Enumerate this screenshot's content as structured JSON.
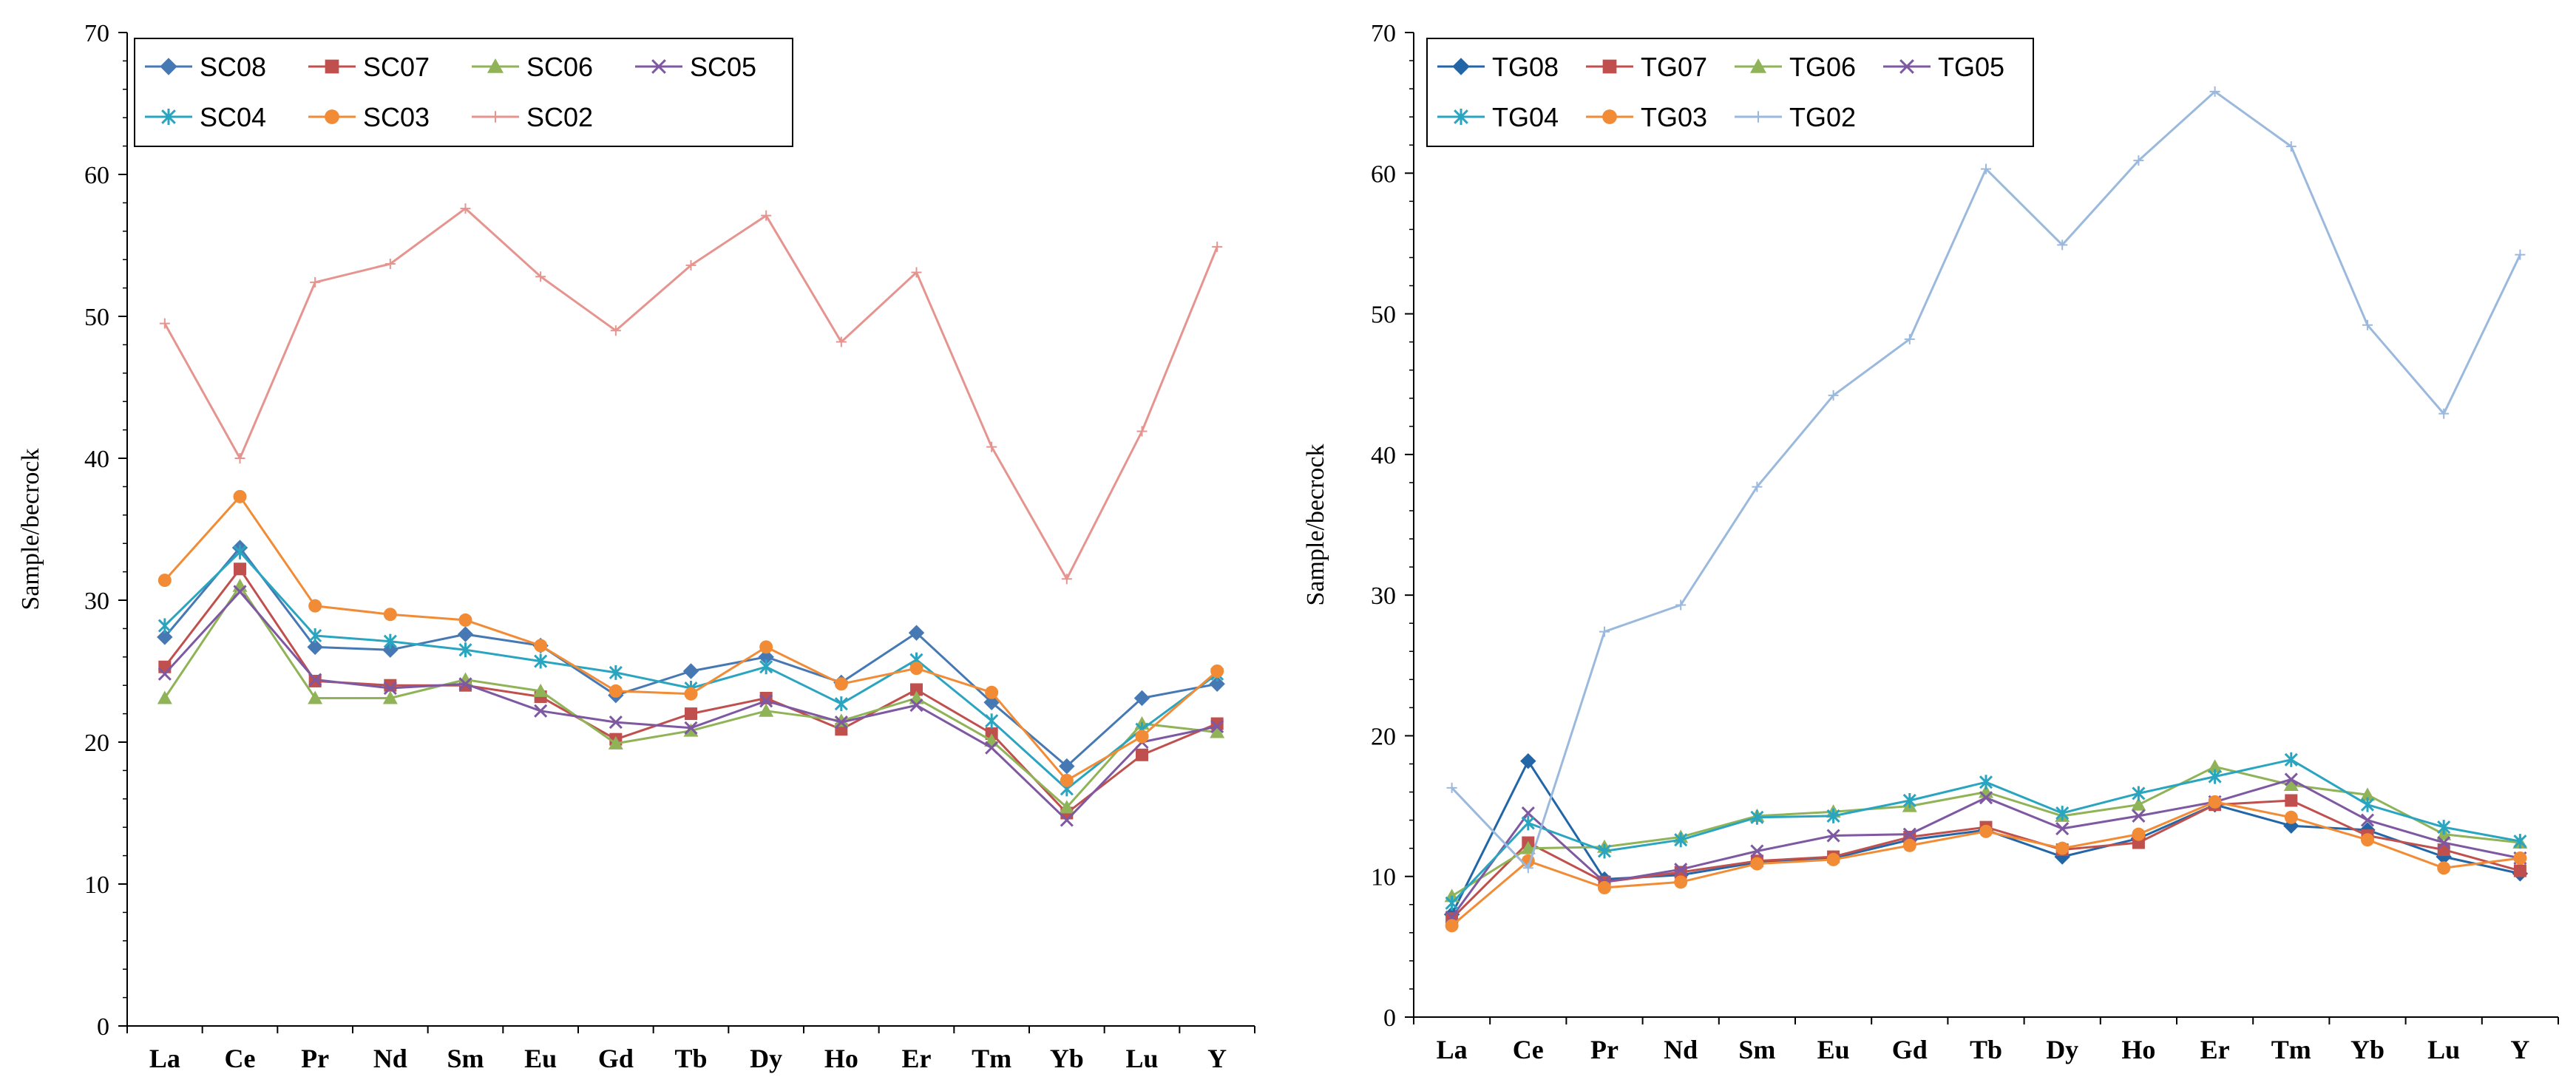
{
  "chart_data": [
    {
      "type": "line",
      "title": "",
      "xlabel": "",
      "ylabel": "Sample/becrock",
      "ylim": [
        0,
        70
      ],
      "yticks": [
        0,
        10,
        20,
        30,
        40,
        50,
        60,
        70
      ],
      "grid": false,
      "legend_position": "top-left",
      "categories": [
        "La",
        "Ce",
        "Pr",
        "Nd",
        "Sm",
        "Eu",
        "Gd",
        "Tb",
        "Dy",
        "Ho",
        "Er",
        "Tm",
        "Yb",
        "Lu",
        "Y"
      ],
      "series": [
        {
          "name": "SC08",
          "color": "#4679b4",
          "marker": "diamond",
          "values": [
            27.4,
            33.7,
            26.7,
            26.5,
            27.6,
            26.8,
            23.3,
            25.0,
            26.0,
            24.2,
            27.7,
            22.8,
            18.3,
            23.1,
            24.1
          ]
        },
        {
          "name": "SC07",
          "color": "#c0504d",
          "marker": "square",
          "values": [
            25.3,
            32.2,
            24.3,
            24.0,
            24.0,
            23.2,
            20.2,
            22.0,
            23.1,
            20.9,
            23.7,
            20.6,
            15.0,
            19.1,
            21.3
          ]
        },
        {
          "name": "SC06",
          "color": "#8fb356",
          "marker": "triangle",
          "values": [
            23.1,
            31.0,
            23.1,
            23.1,
            24.4,
            23.6,
            19.9,
            20.8,
            22.2,
            21.5,
            23.1,
            20.1,
            15.4,
            21.3,
            20.7
          ]
        },
        {
          "name": "SC05",
          "color": "#7e58a1",
          "marker": "x",
          "values": [
            24.8,
            30.6,
            24.4,
            23.8,
            24.1,
            22.2,
            21.4,
            21.0,
            22.9,
            21.4,
            22.6,
            19.6,
            14.5,
            20.0,
            21.1
          ]
        },
        {
          "name": "SC04",
          "color": "#2aa5c0",
          "marker": "star",
          "values": [
            28.2,
            33.4,
            27.5,
            27.1,
            26.5,
            25.7,
            24.9,
            23.8,
            25.3,
            22.7,
            25.8,
            21.5,
            16.7,
            20.9,
            24.8
          ]
        },
        {
          "name": "SC03",
          "color": "#f28b35",
          "marker": "circle",
          "values": [
            31.4,
            37.3,
            29.6,
            29.0,
            28.6,
            26.8,
            23.6,
            23.4,
            26.7,
            24.1,
            25.2,
            23.5,
            17.3,
            20.4,
            25.0
          ]
        },
        {
          "name": "SC02",
          "color": "#e6948f",
          "marker": "plus",
          "values": [
            49.5,
            40.0,
            52.4,
            53.7,
            57.6,
            52.8,
            49.0,
            53.6,
            57.1,
            48.2,
            53.1,
            40.8,
            31.5,
            41.9,
            54.9
          ]
        }
      ]
    },
    {
      "type": "line",
      "title": "",
      "xlabel": "",
      "ylabel": "Sample/becrock",
      "ylim": [
        0,
        70
      ],
      "yticks": [
        0,
        10,
        20,
        30,
        40,
        50,
        60,
        70
      ],
      "grid": false,
      "legend_position": "top-left",
      "categories": [
        "La",
        "Ce",
        "Pr",
        "Nd",
        "Sm",
        "Eu",
        "Gd",
        "Tb",
        "Dy",
        "Ho",
        "Er",
        "Tm",
        "Yb",
        "Lu",
        "Y"
      ],
      "series": [
        {
          "name": "TG08",
          "color": "#2366a8",
          "marker": "diamond",
          "values": [
            7.3,
            18.2,
            9.8,
            10.1,
            11.0,
            11.3,
            12.6,
            13.3,
            11.4,
            12.7,
            15.1,
            13.6,
            13.3,
            11.4,
            10.2
          ]
        },
        {
          "name": "TG07",
          "color": "#c0504d",
          "marker": "square",
          "values": [
            7.0,
            12.4,
            9.6,
            10.3,
            11.1,
            11.4,
            12.8,
            13.5,
            11.9,
            12.4,
            15.1,
            15.4,
            12.9,
            11.9,
            10.4
          ]
        },
        {
          "name": "TG06",
          "color": "#8fb356",
          "marker": "triangle",
          "values": [
            8.6,
            12.0,
            12.1,
            12.8,
            14.3,
            14.6,
            15.0,
            16.0,
            14.3,
            15.1,
            17.8,
            16.5,
            15.8,
            13.0,
            12.4
          ]
        },
        {
          "name": "TG05",
          "color": "#7e58a1",
          "marker": "x",
          "values": [
            7.1,
            14.5,
            9.6,
            10.5,
            11.8,
            12.9,
            13.0,
            15.6,
            13.4,
            14.3,
            15.3,
            16.9,
            14.0,
            12.4,
            11.3
          ]
        },
        {
          "name": "TG04",
          "color": "#2aa5c0",
          "marker": "star",
          "values": [
            8.1,
            13.8,
            11.8,
            12.6,
            14.2,
            14.3,
            15.4,
            16.7,
            14.5,
            15.9,
            17.1,
            18.3,
            15.1,
            13.5,
            12.5
          ]
        },
        {
          "name": "TG03",
          "color": "#f28b35",
          "marker": "circle",
          "values": [
            6.5,
            11.1,
            9.2,
            9.6,
            10.9,
            11.2,
            12.2,
            13.2,
            12.0,
            13.0,
            15.3,
            14.2,
            12.6,
            10.6,
            11.3
          ]
        },
        {
          "name": "TG02",
          "color": "#9ab9dc",
          "marker": "plus",
          "values": [
            16.3,
            10.6,
            27.4,
            29.3,
            37.7,
            44.2,
            48.2,
            60.3,
            54.9,
            60.9,
            65.8,
            61.9,
            49.2,
            42.9,
            54.2
          ]
        }
      ]
    }
  ]
}
